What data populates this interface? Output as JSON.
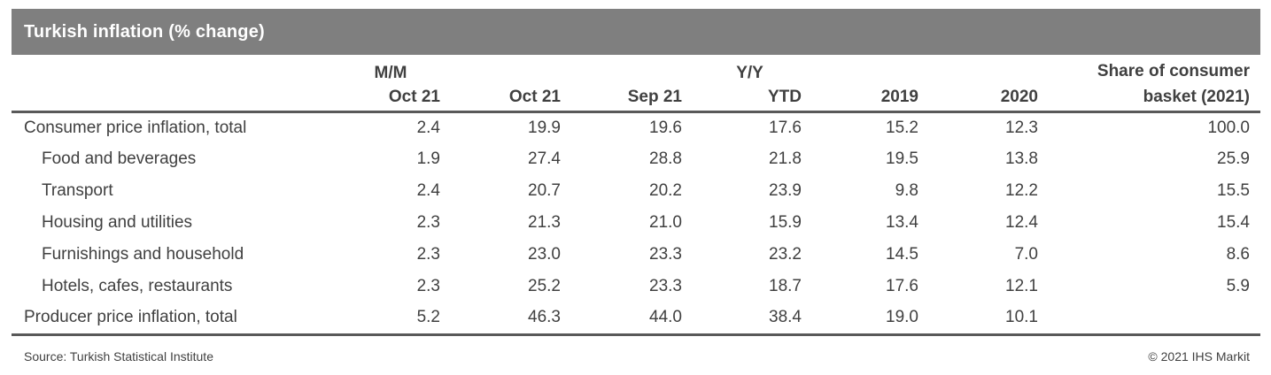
{
  "title": "Turkish inflation (% change)",
  "chart_data": {
    "type": "table",
    "title": "Turkish inflation (% change)",
    "group_headers": {
      "mm": "M/M",
      "yy": "Y/Y"
    },
    "share_header": {
      "line1": "Share of consumer",
      "line2": "basket (2021)"
    },
    "sub_columns": [
      "Oct 21",
      "Oct 21",
      "Sep 21",
      "YTD",
      "2019",
      "2020"
    ],
    "columns": [
      "M/M Oct 21",
      "Y/Y Oct 21",
      "Y/Y Sep 21",
      "Y/Y YTD",
      "Y/Y 2019",
      "Y/Y 2020",
      "Share of consumer basket (2021)"
    ],
    "rows": [
      {
        "label": "Consumer price inflation, total",
        "indent": false,
        "values": [
          "2.4",
          "19.9",
          "19.6",
          "17.6",
          "15.2",
          "12.3",
          "100.0"
        ]
      },
      {
        "label": "Food and beverages",
        "indent": true,
        "values": [
          "1.9",
          "27.4",
          "28.8",
          "21.8",
          "19.5",
          "13.8",
          "25.9"
        ]
      },
      {
        "label": "Transport",
        "indent": true,
        "values": [
          "2.4",
          "20.7",
          "20.2",
          "23.9",
          "9.8",
          "12.2",
          "15.5"
        ]
      },
      {
        "label": "Housing and utilities",
        "indent": true,
        "values": [
          "2.3",
          "21.3",
          "21.0",
          "15.9",
          "13.4",
          "12.4",
          "15.4"
        ]
      },
      {
        "label": "Furnishings and household",
        "indent": true,
        "values": [
          "2.3",
          "23.0",
          "23.3",
          "23.2",
          "14.5",
          "7.0",
          "8.6"
        ]
      },
      {
        "label": "Hotels, cafes, restaurants",
        "indent": true,
        "values": [
          "2.3",
          "25.2",
          "23.3",
          "18.7",
          "17.6",
          "12.1",
          "5.9"
        ]
      },
      {
        "label": "Producer price inflation, total",
        "indent": false,
        "values": [
          "5.2",
          "46.3",
          "44.0",
          "38.4",
          "19.0",
          "10.1",
          ""
        ]
      }
    ]
  },
  "footer": {
    "source": "Source: Turkish Statistical Institute",
    "copyright": "© 2021 IHS Markit"
  },
  "colors": {
    "title_bar": "#7f7f7f",
    "title_text": "#ffffff",
    "rule": "#595959",
    "text": "#404040"
  }
}
